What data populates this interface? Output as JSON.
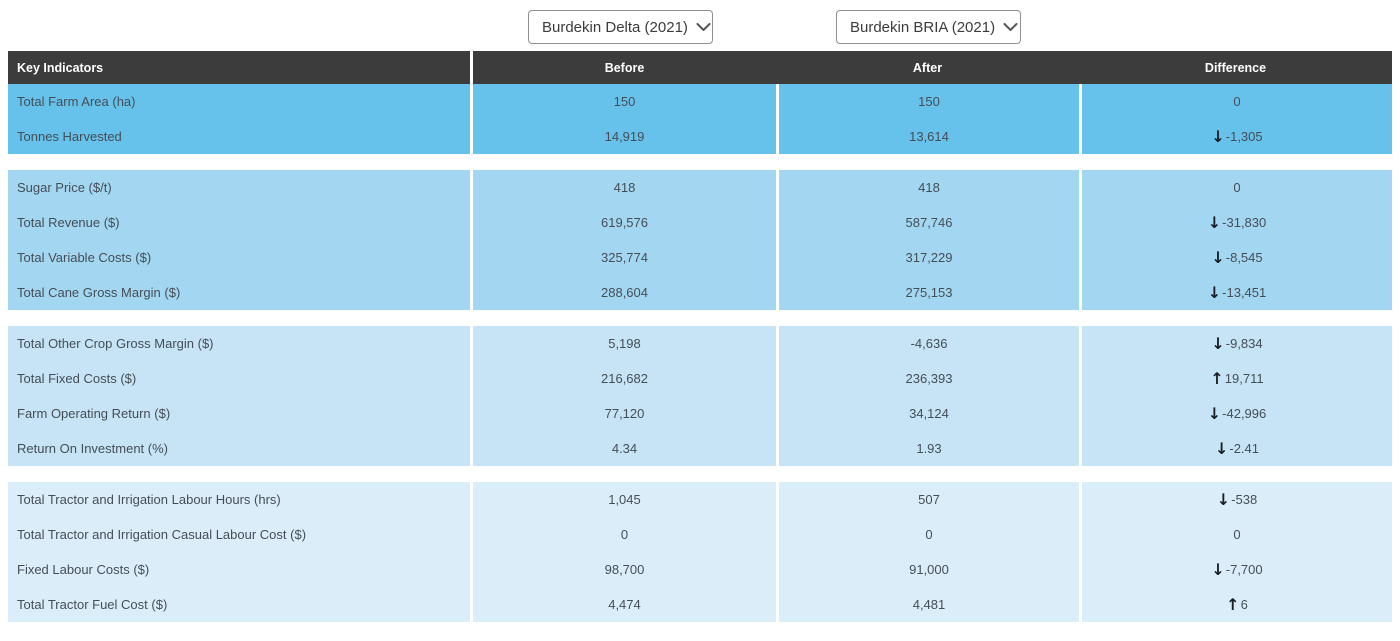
{
  "selectors": {
    "before_dataset": "Burdekin Delta (2021)",
    "after_dataset": "Burdekin BRIA (2021)"
  },
  "icons": {
    "chevron_down": "chevron-down-icon",
    "arrow_down_glyph": "↓",
    "arrow_up_glyph": "↑"
  },
  "colors": {
    "header_bg": "#3c3c3c",
    "header_text": "#ffffff",
    "group_backgrounds": [
      "#66c1eb",
      "#a3d7f1",
      "#c6e4f6",
      "#dcedfa"
    ],
    "cell_text": "#454e56",
    "arrow": "#1b1f23",
    "dropdown_border": "#8f8f8f"
  },
  "table": {
    "headers": [
      "Key Indicators",
      "Before",
      "After",
      "Difference"
    ],
    "groups": [
      {
        "rows": [
          {
            "label": "Total Farm Area (ha)",
            "before": "150",
            "after": "150",
            "diff": "0",
            "arrow": null
          },
          {
            "label": "Tonnes Harvested",
            "before": "14,919",
            "after": "13,614",
            "diff": "-1,305",
            "arrow": "down"
          }
        ]
      },
      {
        "rows": [
          {
            "label": "Sugar Price ($/t)",
            "before": "418",
            "after": "418",
            "diff": "0",
            "arrow": null
          },
          {
            "label": "Total Revenue ($)",
            "before": "619,576",
            "after": "587,746",
            "diff": "-31,830",
            "arrow": "down"
          },
          {
            "label": "Total Variable Costs ($)",
            "before": "325,774",
            "after": "317,229",
            "diff": "-8,545",
            "arrow": "down"
          },
          {
            "label": "Total Cane Gross Margin ($)",
            "before": "288,604",
            "after": "275,153",
            "diff": "-13,451",
            "arrow": "down"
          }
        ]
      },
      {
        "rows": [
          {
            "label": "Total Other Crop Gross Margin ($)",
            "before": "5,198",
            "after": "-4,636",
            "diff": "-9,834",
            "arrow": "down"
          },
          {
            "label": "Total Fixed Costs ($)",
            "before": "216,682",
            "after": "236,393",
            "diff": "19,711",
            "arrow": "up"
          },
          {
            "label": "Farm Operating Return ($)",
            "before": "77,120",
            "after": "34,124",
            "diff": "-42,996",
            "arrow": "down"
          },
          {
            "label": "Return On Investment (%)",
            "before": "4.34",
            "after": "1.93",
            "diff": "-2.41",
            "arrow": "down"
          }
        ]
      },
      {
        "rows": [
          {
            "label": "Total Tractor and Irrigation Labour Hours (hrs)",
            "before": "1,045",
            "after": "507",
            "diff": "-538",
            "arrow": "down"
          },
          {
            "label": "Total Tractor and Irrigation Casual Labour Cost ($)",
            "before": "0",
            "after": "0",
            "diff": "0",
            "arrow": null
          },
          {
            "label": "Fixed Labour Costs ($)",
            "before": "98,700",
            "after": "91,000",
            "diff": "-7,700",
            "arrow": "down"
          },
          {
            "label": "Total Tractor Fuel Cost ($)",
            "before": "4,474",
            "after": "4,481",
            "diff": "6",
            "arrow": "up"
          }
        ]
      }
    ]
  }
}
